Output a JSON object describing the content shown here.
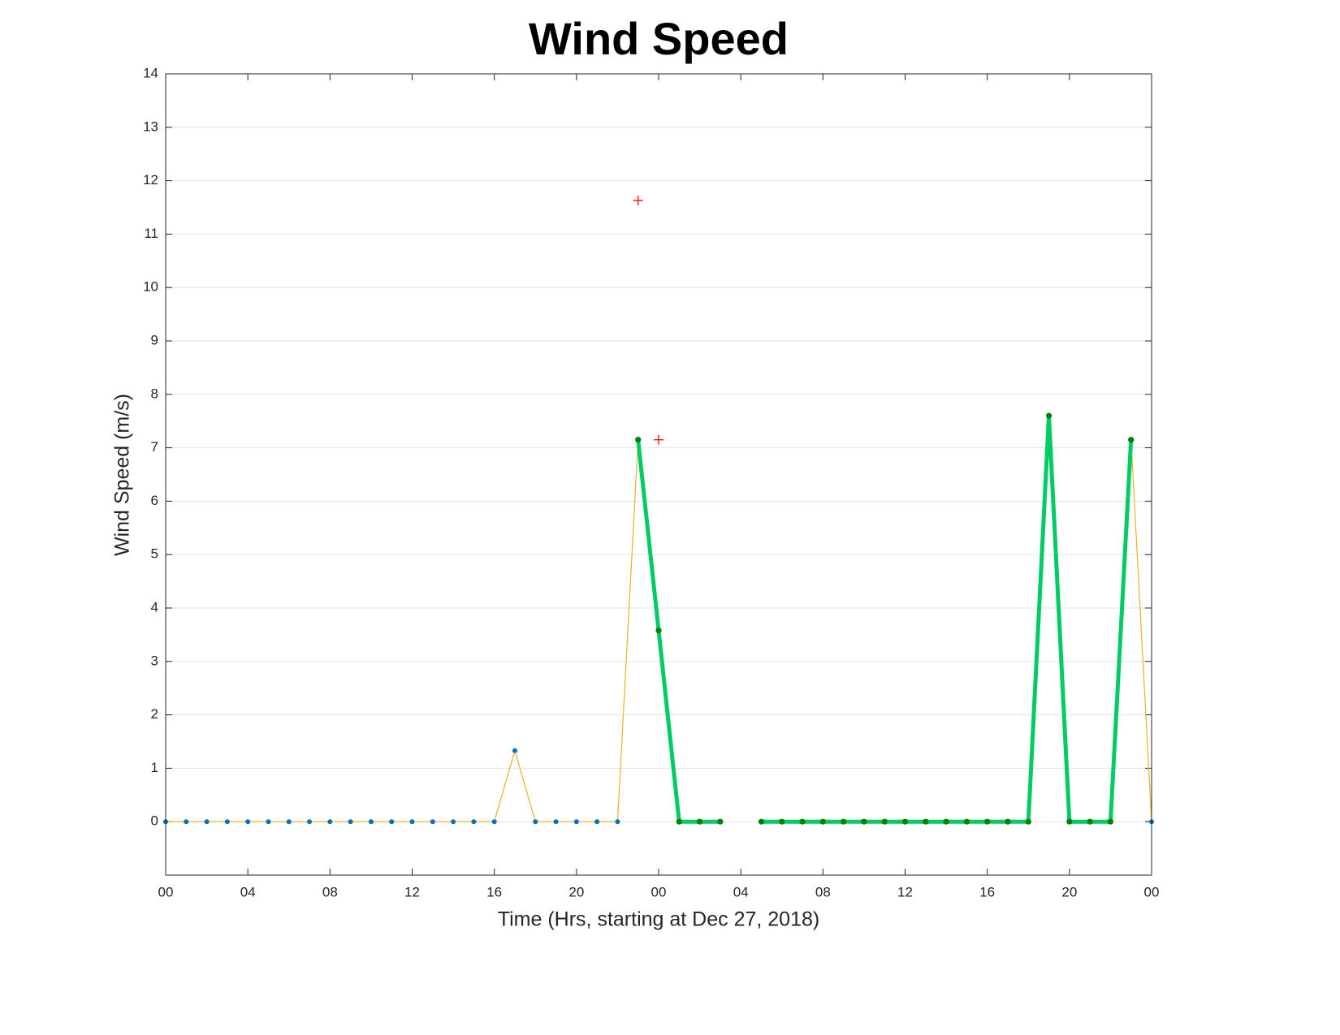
{
  "chart_data": {
    "type": "line",
    "title": "Wind Speed",
    "xlabel": "Time (Hrs, starting at Dec 27, 2018)",
    "ylabel": "Wind Speed (m/s)",
    "xlim": [
      0,
      48
    ],
    "ylim": [
      -1,
      14
    ],
    "xticks": [
      {
        "value": 0,
        "label": "00"
      },
      {
        "value": 4,
        "label": "04"
      },
      {
        "value": 8,
        "label": "08"
      },
      {
        "value": 12,
        "label": "12"
      },
      {
        "value": 16,
        "label": "16"
      },
      {
        "value": 20,
        "label": "20"
      },
      {
        "value": 24,
        "label": "00"
      },
      {
        "value": 28,
        "label": "04"
      },
      {
        "value": 32,
        "label": "08"
      },
      {
        "value": 36,
        "label": "12"
      },
      {
        "value": 40,
        "label": "16"
      },
      {
        "value": 44,
        "label": "20"
      },
      {
        "value": 48,
        "label": "00"
      }
    ],
    "yticks": [
      0,
      1,
      2,
      3,
      4,
      5,
      6,
      7,
      8,
      9,
      10,
      11,
      12,
      13,
      14
    ],
    "grid": true,
    "series": [
      {
        "color": "#edb120",
        "marker": ".",
        "marker_color": "#0072bd",
        "x": [
          0,
          1,
          2,
          3,
          4,
          5,
          6,
          7,
          8,
          9,
          10,
          11,
          12,
          13,
          14,
          15,
          16,
          17,
          18,
          19,
          20,
          21,
          22,
          23,
          24,
          25,
          26,
          27,
          28,
          29,
          30,
          31,
          32,
          33,
          34,
          35,
          36,
          37,
          38,
          39,
          40,
          41,
          42,
          43,
          44,
          45,
          46,
          47,
          48
        ],
        "values": [
          0,
          0,
          0,
          0,
          0,
          0,
          0,
          0,
          0,
          0,
          0,
          0,
          0,
          0,
          0,
          0,
          0,
          1.33,
          0,
          0,
          0,
          0,
          0,
          7.15,
          3.58,
          0,
          0,
          0,
          null,
          0,
          0,
          0,
          0,
          0,
          0,
          0,
          0,
          0,
          0,
          0,
          0,
          0,
          0,
          7.6,
          0,
          0,
          0,
          7.15,
          0
        ]
      },
      {
        "color": "#00cc66",
        "marker": ".",
        "marker_color": "#007f00",
        "x": [
          23,
          24,
          25,
          26,
          27,
          28,
          29,
          30,
          31,
          32,
          33,
          34,
          35,
          36,
          37,
          38,
          39,
          40,
          41,
          42,
          43,
          44,
          45,
          46,
          47
        ],
        "values": [
          7.15,
          3.58,
          0,
          0,
          0,
          null,
          0,
          0,
          0,
          0,
          0,
          0,
          0,
          0,
          0,
          0,
          0,
          0,
          0,
          0,
          7.6,
          0,
          0,
          0,
          7.15
        ]
      },
      {
        "color": null,
        "marker": "+",
        "marker_color": "#ff0000",
        "x": [
          23,
          24
        ],
        "values": [
          11.63,
          7.15
        ]
      }
    ]
  }
}
